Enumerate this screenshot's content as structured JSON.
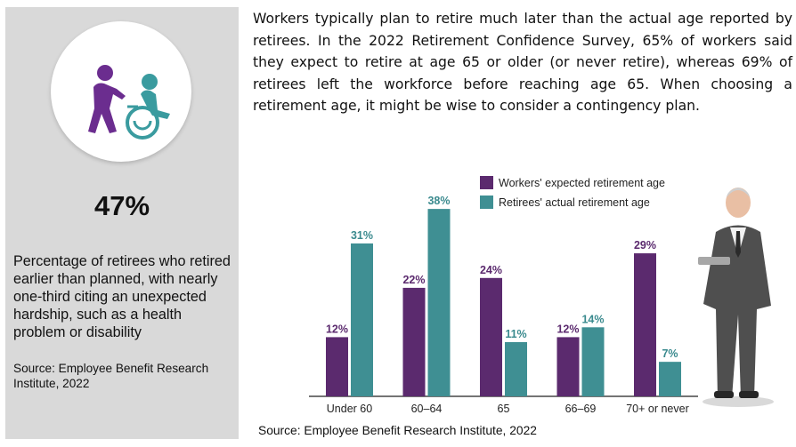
{
  "left_panel": {
    "stat": "47%",
    "description": "Percentage of retirees who retired earlier than planned, with nearly one-third citing an unexpected hardship, such as a health problem or disability",
    "source": "Source: Employee Benefit Research Institute, 2022",
    "icon": "caregiver-wheelchair-icon",
    "icon_colors": {
      "caregiver": "#6b2d8f",
      "patient": "#3a9b9f"
    }
  },
  "paragraph": "Workers typically plan to retire much later than the actual age reported by retirees. In the 2022 Retirement Confidence Survey, 65% of workers said they expect to retire at age 65 or older (or never retire), whereas 69% of retirees left the workforce before reaching age 65. When choosing a retirement age, it might be wise to consider a contingency plan.",
  "chart_source": "Source: Employee Benefit Research Institute, 2022",
  "chart_data": {
    "type": "bar",
    "categories": [
      "Under 60",
      "60–64",
      "65",
      "66–69",
      "70+ or never"
    ],
    "series": [
      {
        "name": "Workers' expected retirement age",
        "values": [
          12,
          22,
          24,
          12,
          29
        ],
        "labels": [
          "12%",
          "22%",
          "24%",
          "12%",
          "29%"
        ],
        "color": "#5b2a6e"
      },
      {
        "name": "Retirees' actual retirement age",
        "values": [
          31,
          38,
          11,
          14,
          7
        ],
        "labels": [
          "31%",
          "38%",
          "11%",
          "14%",
          "7%"
        ],
        "color": "#3f8f93"
      }
    ],
    "ylim": [
      0,
      40
    ],
    "grid": false,
    "legend": "top-right",
    "photo": "businessman-holding-tablet"
  }
}
